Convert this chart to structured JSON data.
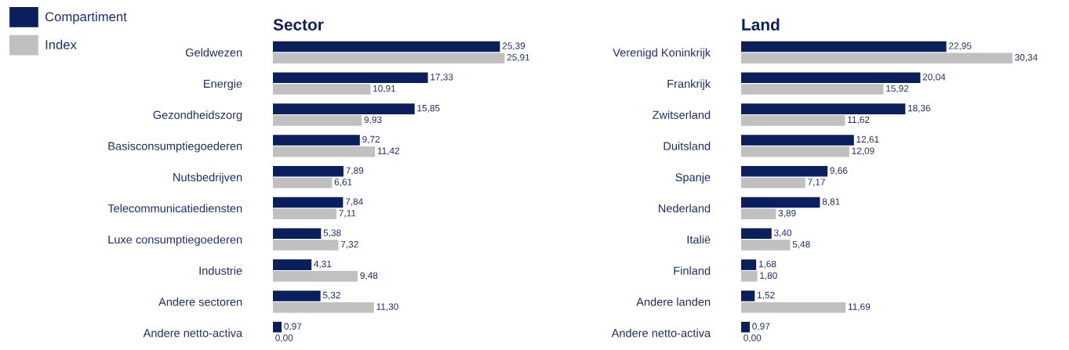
{
  "chart_data": [
    {
      "type": "bar",
      "orientation": "horizontal",
      "title": "Sector",
      "tick_labels": "y",
      "legend": "top left",
      "grid": false,
      "categories": [
        "Geldwezen",
        "Energie",
        "Gezondheidszorg",
        "Basisconsumptiegoederen",
        "Nutsbedrijven",
        "Telecommunicatiediensten",
        "Luxe consumptiegoederen",
        "Industrie",
        "Andere sectoren",
        "Andere netto-activa"
      ],
      "series": [
        {
          "name": "Compartiment",
          "color": "#0a1f5c",
          "values": [
            25.39,
            17.33,
            15.85,
            9.72,
            7.89,
            7.84,
            5.38,
            4.31,
            5.32,
            0.97
          ],
          "value_labels": [
            "25,39",
            "17,33",
            "15,85",
            "9,72",
            "7,89",
            "7,84",
            "5,38",
            "4,31",
            "5,32",
            "0,97"
          ]
        },
        {
          "name": "Index",
          "color": "#c0c0c0",
          "values": [
            25.91,
            10.91,
            9.93,
            11.42,
            6.61,
            7.11,
            7.32,
            9.48,
            11.3,
            0.0
          ],
          "value_labels": [
            "25,91",
            "10,91",
            "9,93",
            "11,42",
            "6,61",
            "7,11",
            "7,32",
            "9,48",
            "11,30",
            "0,00"
          ]
        }
      ]
    },
    {
      "type": "bar",
      "orientation": "horizontal",
      "title": "Land",
      "tick_labels": "y",
      "grid": false,
      "categories": [
        "Verenigd Koninkrijk",
        "Frankrijk",
        "Zwitserland",
        "Duitsland",
        "Spanje",
        "Nederland",
        "Italië",
        "Finland",
        "Andere landen",
        "Andere netto-activa"
      ],
      "series": [
        {
          "color": "#0a1f5c",
          "values": [
            22.95,
            20.04,
            18.36,
            12.61,
            9.66,
            8.81,
            3.4,
            1.68,
            1.52,
            0.97
          ],
          "value_labels": [
            "22,95",
            "20,04",
            "18,36",
            "12,61",
            "9,66",
            "8,81",
            "3,40",
            "1,68",
            "1,52",
            "0,97"
          ]
        },
        {
          "color": "#c0c0c0",
          "values": [
            30.34,
            15.92,
            11.62,
            12.09,
            7.17,
            3.89,
            5.48,
            1.8,
            11.69,
            0.0
          ],
          "value_labels": [
            "30,34",
            "15,92",
            "11,62",
            "12,09",
            "7,17",
            "3,89",
            "5,48",
            "1,80",
            "11,69",
            "0,00"
          ]
        }
      ]
    }
  ]
}
